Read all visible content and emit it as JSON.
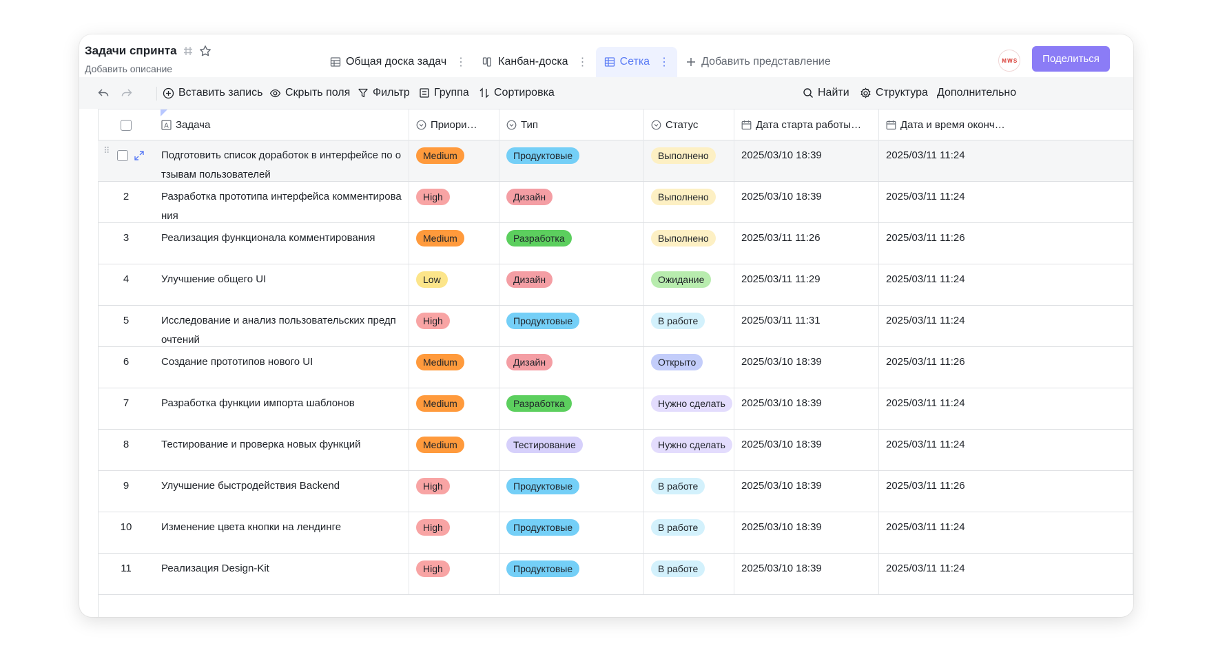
{
  "header": {
    "title": "Задачи спринта",
    "description": "Добавить описание",
    "share_label": "Поделиться",
    "avatar_text": "M W S"
  },
  "views": [
    {
      "label": "Общая доска задач",
      "icon": "table-icon",
      "active": false
    },
    {
      "label": "Канбан-доска",
      "icon": "kanban-icon",
      "active": false
    },
    {
      "label": "Сетка",
      "icon": "grid-icon",
      "active": true
    }
  ],
  "add_view_label": "Добавить представление",
  "toolbar": {
    "insert": "Вставить запись",
    "hide_fields": "Скрыть поля",
    "filter": "Фильтр",
    "group": "Группа",
    "sort": "Сортировка",
    "find": "Найти",
    "structure": "Структура",
    "more": "Дополнительно"
  },
  "columns": {
    "task": "Задача",
    "priority": "Приори…",
    "type": "Тип",
    "status": "Статус",
    "start": "Дата старта работы…",
    "end": "Дата и время оконч…"
  },
  "colors": {
    "Medium": "#ff9a3c",
    "High": "#f8a4a4",
    "Low": "#fce58a",
    "Продуктовые": "#74cff7",
    "Дизайн": "#f49ea4",
    "Разработка": "#5ccf5e",
    "Тестирование": "#d6d0fb",
    "Выполнено": "#fdf0c4",
    "Ожидание": "#b8ecae",
    "В работе": "#d3f1fc",
    "Открыто": "#c3cdfa",
    "Нужно сделать": "#e3dcfd"
  },
  "rows": [
    {
      "num": "",
      "task": "Подготовить список доработок в интерфейсе по отзывам пользователей",
      "priority": "Medium",
      "type": "Продуктовые",
      "status": "Выполнено",
      "start": "2025/03/10 18:39",
      "end": "2025/03/11 11:24"
    },
    {
      "num": "2",
      "task": "Разработка прототипа интерфейса комментирования",
      "priority": "High",
      "type": "Дизайн",
      "status": "Выполнено",
      "start": "2025/03/10 18:39",
      "end": "2025/03/11 11:24"
    },
    {
      "num": "3",
      "task": "Реализация функционала комментирования",
      "priority": "Medium",
      "type": "Разработка",
      "status": "Выполнено",
      "start": "2025/03/11 11:26",
      "end": "2025/03/11 11:26"
    },
    {
      "num": "4",
      "task": "Улучшение общего UI",
      "priority": "Low",
      "type": "Дизайн",
      "status": "Ожидание",
      "start": "2025/03/11 11:29",
      "end": "2025/03/11 11:24"
    },
    {
      "num": "5",
      "task": "Исследование и анализ пользовательских предпочтений",
      "priority": "High",
      "type": "Продуктовые",
      "status": "В работе",
      "start": "2025/03/11 11:31",
      "end": "2025/03/11 11:24"
    },
    {
      "num": "6",
      "task": "Создание прототипов нового UI",
      "priority": "Medium",
      "type": "Дизайн",
      "status": "Открыто",
      "start": "2025/03/10 18:39",
      "end": "2025/03/11 11:26"
    },
    {
      "num": "7",
      "task": "Разработка функции импорта шаблонов",
      "priority": "Medium",
      "type": "Разработка",
      "status": "Нужно сделать",
      "start": "2025/03/10 18:39",
      "end": "2025/03/11 11:24"
    },
    {
      "num": "8",
      "task": "Тестирование и проверка новых функций",
      "priority": "Medium",
      "type": "Тестирование",
      "status": "Нужно сделать",
      "start": "2025/03/10 18:39",
      "end": "2025/03/11 11:24"
    },
    {
      "num": "9",
      "task": "Улучшение быстродействия Backend",
      "priority": "High",
      "type": "Продуктовые",
      "status": "В работе",
      "start": "2025/03/10 18:39",
      "end": "2025/03/11 11:26"
    },
    {
      "num": "10",
      "task": "Изменение цвета кнопки на лендинге",
      "priority": "High",
      "type": "Продуктовые",
      "status": "В работе",
      "start": "2025/03/10 18:39",
      "end": "2025/03/11 11:24"
    },
    {
      "num": "11",
      "task": "Реализация Design-Kit",
      "priority": "High",
      "type": "Продуктовые",
      "status": "В работе",
      "start": "2025/03/10 18:39",
      "end": "2025/03/11 11:24"
    }
  ]
}
